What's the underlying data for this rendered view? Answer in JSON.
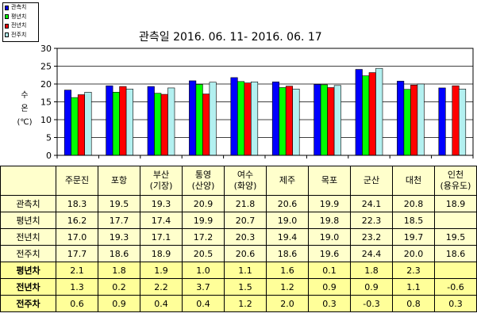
{
  "chart_data": {
    "type": "bar",
    "title": "관측일 2016. 06. 11- 2016. 06. 17",
    "ylabel": [
      "수",
      "온",
      "(℃)"
    ],
    "ylim": [
      0,
      30
    ],
    "yticks": [
      "0",
      "5",
      "10",
      "15",
      "20",
      "25",
      "30"
    ],
    "grid": true,
    "legend_position": "top-left",
    "categories": [
      "주문진",
      "포항",
      "부산 (기장)",
      "통영 (산양)",
      "여수 (화양)",
      "제주",
      "목포",
      "군산",
      "대천",
      "인천 (용유도)"
    ],
    "series": [
      {
        "name": "관측치",
        "color": "#0000ff",
        "values": [
          18.3,
          19.5,
          19.3,
          20.9,
          21.8,
          20.6,
          19.9,
          24.1,
          20.8,
          18.9
        ]
      },
      {
        "name": "평년치",
        "color": "#00ff00",
        "values": [
          16.2,
          17.7,
          17.4,
          19.9,
          20.7,
          19.0,
          19.8,
          22.3,
          18.5,
          null
        ]
      },
      {
        "name": "전년치",
        "color": "#ff0000",
        "values": [
          17.0,
          19.3,
          17.1,
          17.2,
          20.3,
          19.4,
          19.0,
          23.2,
          19.7,
          19.5
        ]
      },
      {
        "name": "전주치",
        "color": "#b3f0f0",
        "values": [
          17.7,
          18.6,
          18.9,
          20.5,
          20.6,
          18.6,
          19.6,
          24.4,
          20.0,
          18.6
        ]
      }
    ]
  },
  "table": {
    "header": [
      "",
      "주문진",
      "포항",
      "부산\n(기장)",
      "통영\n(산양)",
      "여수\n(화양)",
      "제주",
      "목포",
      "군산",
      "대천",
      "인천\n(용유도)"
    ],
    "rows": [
      {
        "label": "관측치",
        "kind": "value",
        "cells": [
          "18.3",
          "19.5",
          "19.3",
          "20.9",
          "21.8",
          "20.6",
          "19.9",
          "24.1",
          "20.8",
          "18.9"
        ]
      },
      {
        "label": "평년치",
        "kind": "value",
        "cells": [
          "16.2",
          "17.7",
          "17.4",
          "19.9",
          "20.7",
          "19.0",
          "19.8",
          "22.3",
          "18.5",
          ""
        ]
      },
      {
        "label": "전년치",
        "kind": "value",
        "cells": [
          "17.0",
          "19.3",
          "17.1",
          "17.2",
          "20.3",
          "19.4",
          "19.0",
          "23.2",
          "19.7",
          "19.5"
        ]
      },
      {
        "label": "전주치",
        "kind": "value",
        "cells": [
          "17.7",
          "18.6",
          "18.9",
          "20.5",
          "20.6",
          "18.6",
          "19.6",
          "24.4",
          "20.0",
          "18.6"
        ]
      },
      {
        "label": "평년차",
        "kind": "diff",
        "cells": [
          "2.1",
          "1.8",
          "1.9",
          "1.0",
          "1.1",
          "1.6",
          "0.1",
          "1.8",
          "2.3",
          ""
        ]
      },
      {
        "label": "전년차",
        "kind": "diff",
        "cells": [
          "1.3",
          "0.2",
          "2.2",
          "3.7",
          "1.5",
          "1.2",
          "0.9",
          "0.9",
          "1.1",
          "-0.6"
        ]
      },
      {
        "label": "전주차",
        "kind": "diff",
        "cells": [
          "0.6",
          "0.9",
          "0.4",
          "0.4",
          "1.2",
          "2.0",
          "0.3",
          "-0.3",
          "0.8",
          "0.3"
        ]
      }
    ]
  }
}
